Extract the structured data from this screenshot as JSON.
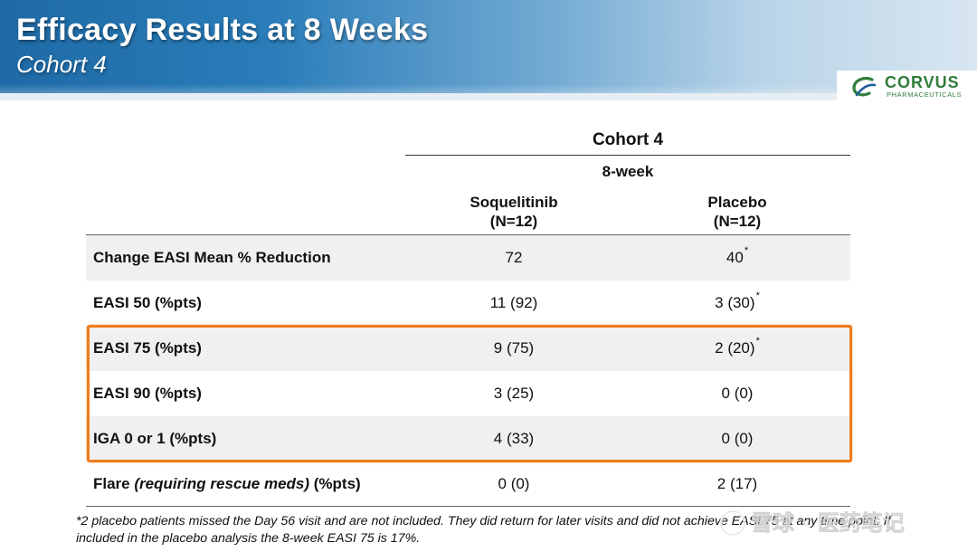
{
  "header": {
    "title": "Efficacy Results at 8 Weeks",
    "subtitle": "Cohort 4",
    "logo": {
      "name": "CORVUS",
      "tagline": "PHARMACEUTICALS",
      "icon": "corvus-logo-icon",
      "color": "#2f7d3a"
    }
  },
  "table": {
    "group_header": "Cohort 4",
    "subgroup_header": "8-week",
    "columns": [
      {
        "name": "Soquelitinib",
        "n": "(N=12)"
      },
      {
        "name": "Placebo",
        "n": "(N=12)"
      }
    ],
    "rows": [
      {
        "label": "Change EASI Mean % Reduction",
        "soquelitinib": "72",
        "placebo": "40",
        "placebo_note": "*"
      },
      {
        "label": "EASI 50 (%pts)",
        "soquelitinib": "11 (92)",
        "placebo": "3 (30)",
        "placebo_note": "*"
      },
      {
        "label": "EASI 75 (%pts)",
        "soquelitinib": "9 (75)",
        "placebo": "2 (20)",
        "placebo_note": "*"
      },
      {
        "label": "EASI 90 (%pts)",
        "soquelitinib": "3 (25)",
        "placebo": "0 (0)"
      },
      {
        "label": "IGA 0 or 1 (%pts)",
        "soquelitinib": "4 (33)",
        "placebo": "0 (0)"
      },
      {
        "label_prefix": "Flare ",
        "label_italic": "(requiring rescue meds)",
        "label_suffix": " (%pts)",
        "soquelitinib": "0 (0)",
        "placebo": "2 (17)"
      }
    ],
    "highlight_color": "#f07c1c"
  },
  "footnote": "*2 placebo patients missed the Day 56 visit and are not included. They did return for later visits and did not achieve EASI 75 at any time point. If included in the placebo analysis the 8-week EASI 75 is 17%.",
  "watermark": {
    "text": "雪球 · 医药笔记",
    "icon": "snowball-icon"
  }
}
